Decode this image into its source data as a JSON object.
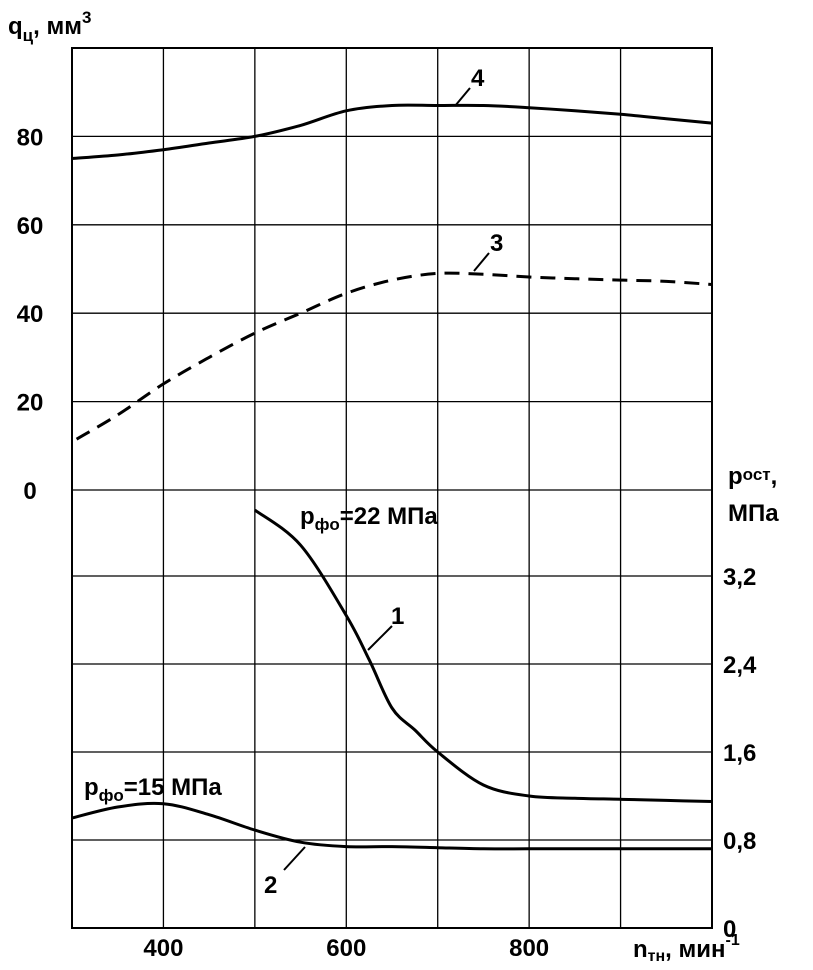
{
  "chart_data": {
    "type": "line",
    "x_axis": {
      "label": "n",
      "label_sub": "тн",
      "label_unit": ", мин",
      "label_exp": "-1",
      "range": [
        300,
        1000
      ],
      "ticks": [
        400,
        600,
        800
      ],
      "tick_labels": [
        "400",
        "600",
        "800"
      ],
      "grid": [
        300,
        400,
        500,
        600,
        700,
        800,
        900,
        1000
      ]
    },
    "y_left": {
      "label": "q",
      "label_sub": "ц",
      "label_unit": ", мм",
      "label_exp": "3",
      "range": [
        0,
        100
      ],
      "ticks": [
        0,
        20,
        40,
        60,
        80
      ],
      "tick_labels": [
        "0",
        "20",
        "40",
        "60",
        "80"
      ]
    },
    "y_right": {
      "label": "p",
      "label_sub": "ост",
      "label_unit": ",",
      "label_line2": "МПа",
      "range": [
        0,
        4.0
      ],
      "ticks": [
        0,
        0.8,
        1.6,
        2.4,
        3.2
      ],
      "tick_labels": [
        "0",
        "0,8",
        "1,6",
        "2,4",
        "3,2"
      ]
    },
    "grid": true,
    "series": [
      {
        "name": "4",
        "axis": "left",
        "style": "solid",
        "x": [
          300,
          350,
          400,
          450,
          500,
          550,
          600,
          650,
          700,
          750,
          800,
          850,
          900,
          950,
          1000
        ],
        "y": [
          75,
          75.8,
          77,
          78.5,
          80,
          82.5,
          85.8,
          87,
          87,
          87,
          86.5,
          85.8,
          85,
          84,
          83
        ]
      },
      {
        "name": "3",
        "axis": "left",
        "style": "dashed",
        "x": [
          305,
          350,
          400,
          450,
          500,
          550,
          600,
          650,
          700,
          750,
          800,
          850,
          900,
          950,
          1000
        ],
        "y": [
          11.5,
          17,
          24,
          30,
          35.5,
          40,
          44.5,
          47.5,
          49,
          48.8,
          48.2,
          47.8,
          47.5,
          47.2,
          46.5
        ]
      },
      {
        "name": "1",
        "axis": "right",
        "style": "solid",
        "x": [
          500,
          550,
          600,
          625,
          650,
          675,
          700,
          750,
          800,
          850,
          900,
          950,
          1000
        ],
        "y": [
          3.8,
          3.48,
          2.84,
          2.44,
          2.0,
          1.8,
          1.6,
          1.3,
          1.2,
          1.18,
          1.17,
          1.16,
          1.15
        ]
      },
      {
        "name": "2",
        "axis": "right",
        "style": "solid",
        "x": [
          300,
          350,
          400,
          450,
          500,
          550,
          600,
          650,
          700,
          750,
          800,
          850,
          900,
          950,
          1000
        ],
        "y": [
          1.0,
          1.1,
          1.13,
          1.03,
          0.89,
          0.78,
          0.74,
          0.74,
          0.73,
          0.72,
          0.72,
          0.72,
          0.72,
          0.72,
          0.72
        ]
      }
    ],
    "curve_labels": [
      "4",
      "3",
      "1",
      "2"
    ],
    "annotations": [
      {
        "text": "p",
        "sub": "фо",
        "rest": "=22 МПа"
      },
      {
        "text": "p",
        "sub": "фо",
        "rest": "=15 МПа"
      }
    ]
  }
}
